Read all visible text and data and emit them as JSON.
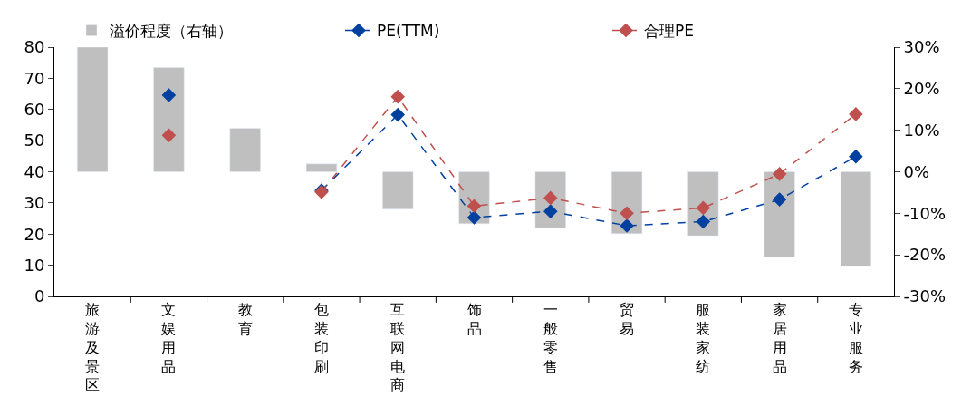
{
  "chart_data": {
    "type": "bar",
    "categories": [
      "旅游及景区",
      "文娱用品",
      "教育",
      "包装印刷",
      "互联网电商",
      "饰品",
      "一般零售",
      "贸易",
      "服装家纺",
      "家居用品",
      "专业服务"
    ],
    "series": [
      {
        "name": "溢价程度（右轴）",
        "axis": "y2",
        "color": "#bfbfbf",
        "values": [
          30,
          25.1,
          10.5,
          1.9,
          -9,
          -12.5,
          -13.5,
          -14.9,
          -15.4,
          -20.6,
          -22.8
        ]
      },
      {
        "name": "PE(TTM)",
        "type": "line",
        "color": "#0041a0",
        "marker": "diamond",
        "line_style": "dashed",
        "values": [
          null,
          64.6,
          null,
          34,
          58.3,
          25.3,
          27.3,
          22.7,
          24,
          31.1,
          44.9
        ]
      },
      {
        "name": "合理PE",
        "type": "line",
        "color": "#c0504d",
        "marker": "diamond",
        "line_style": "dashed",
        "values": [
          null,
          51.7,
          null,
          33.5,
          64.1,
          29,
          31.6,
          26.7,
          28.4,
          39.3,
          58.5
        ]
      }
    ],
    "ylim": [
      0,
      80
    ],
    "yticks": [
      0,
      10,
      20,
      30,
      40,
      50,
      60,
      70,
      80
    ],
    "y2lim": [
      -30,
      30
    ],
    "y2ticks": [
      {
        "value": -30,
        "label": "-30%"
      },
      {
        "value": -20,
        "label": "-20%"
      },
      {
        "value": -10,
        "label": "-10%"
      },
      {
        "value": 0,
        "label": "0%"
      },
      {
        "value": 10,
        "label": "10%"
      },
      {
        "value": 20,
        "label": "20%"
      },
      {
        "value": 30,
        "label": "30%"
      }
    ],
    "legend": "top"
  }
}
